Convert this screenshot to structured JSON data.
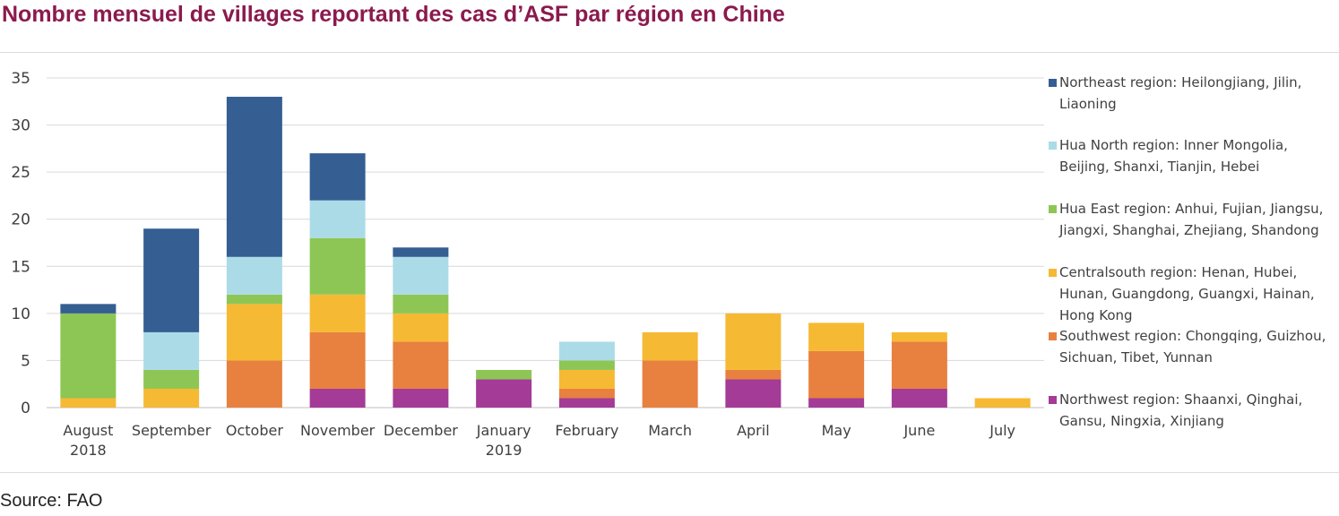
{
  "title": "Nombre mensuel de villages reportant des cas d’ASF par région en Chine",
  "source": "Source: FAO",
  "chart_data": {
    "type": "bar",
    "stacked": true,
    "ylim": [
      0,
      35
    ],
    "yticks": [
      0,
      5,
      10,
      15,
      20,
      25,
      30,
      35
    ],
    "grid": true,
    "legend_position": "right",
    "categories": [
      [
        "August",
        "2018"
      ],
      [
        "September"
      ],
      [
        "October"
      ],
      [
        "November"
      ],
      [
        "December"
      ],
      [
        "January",
        "2019"
      ],
      [
        "February"
      ],
      [
        "March"
      ],
      [
        "April"
      ],
      [
        "May"
      ],
      [
        "June"
      ],
      [
        "July"
      ]
    ],
    "series": [
      {
        "name": [
          "Northwest region: Shaanxi, Qinghai,",
          "Gansu, Ningxia, Xinjiang"
        ],
        "color": "#a33b97",
        "values": [
          0,
          0,
          0,
          2,
          2,
          3,
          1,
          0,
          3,
          1,
          2,
          0
        ]
      },
      {
        "name": [
          "Southwest region: Chongqing, Guizhou,",
          "Sichuan, Tibet, Yunnan"
        ],
        "color": "#e8803f",
        "values": [
          0,
          0,
          5,
          6,
          5,
          0,
          1,
          5,
          1,
          5,
          5,
          0
        ]
      },
      {
        "name": [
          "Centralsouth region: Henan, Hubei,",
          "Hunan, Guangdong, Guangxi, Hainan,",
          "Hong Kong"
        ],
        "color": "#f6b934",
        "values": [
          1,
          2,
          6,
          4,
          3,
          0,
          2,
          3,
          6,
          3,
          1,
          1
        ]
      },
      {
        "name": [
          "Hua East region: Anhui, Fujian, Jiangsu,",
          "Jiangxi, Shanghai, Zhejiang, Shandong"
        ],
        "color": "#8dc654",
        "values": [
          9,
          2,
          1,
          6,
          2,
          1,
          1,
          0,
          0,
          0,
          0,
          0
        ]
      },
      {
        "name": [
          "Hua North region: Inner Mongolia,",
          "Beijing, Shanxi, Tianjin, Hebei"
        ],
        "color": "#acdbe8",
        "values": [
          0,
          4,
          4,
          4,
          4,
          0,
          2,
          0,
          0,
          0,
          0,
          0
        ]
      },
      {
        "name": [
          "Northeast region: Heilongjiang, Jilin,",
          "Liaoning"
        ],
        "color": "#355e92",
        "values": [
          1,
          11,
          17,
          5,
          1,
          0,
          0,
          0,
          0,
          0,
          0,
          0
        ]
      }
    ]
  }
}
